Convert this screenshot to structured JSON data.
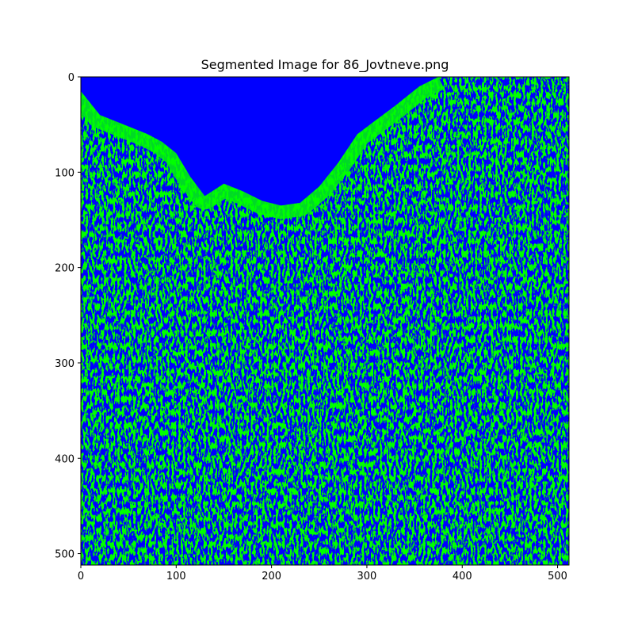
{
  "title": "Segmented Image for 86_Jovtneve.png",
  "image": {
    "width": 512,
    "height": 512,
    "class_colors": [
      "#0000ff",
      "#00ff00"
    ],
    "class_names": [
      "blue",
      "green"
    ]
  },
  "x_axis": {
    "ticks": [
      0,
      100,
      200,
      300,
      400,
      500
    ],
    "tick_labels": [
      "0",
      "100",
      "200",
      "300",
      "400",
      "500"
    ],
    "range": [
      0,
      512
    ]
  },
  "y_axis": {
    "ticks": [
      0,
      100,
      200,
      300,
      400,
      500
    ],
    "tick_labels": [
      "0",
      "100",
      "200",
      "300",
      "400",
      "500"
    ],
    "range": [
      0,
      512
    ],
    "inverted": true
  },
  "blue_region_boundary": [
    [
      0,
      15
    ],
    [
      20,
      40
    ],
    [
      45,
      50
    ],
    [
      70,
      60
    ],
    [
      85,
      68
    ],
    [
      100,
      80
    ],
    [
      115,
      105
    ],
    [
      130,
      125
    ],
    [
      150,
      112
    ],
    [
      170,
      120
    ],
    [
      190,
      130
    ],
    [
      210,
      135
    ],
    [
      230,
      132
    ],
    [
      250,
      115
    ],
    [
      270,
      90
    ],
    [
      290,
      60
    ],
    [
      310,
      45
    ],
    [
      330,
      30
    ],
    [
      355,
      10
    ],
    [
      375,
      0
    ]
  ]
}
